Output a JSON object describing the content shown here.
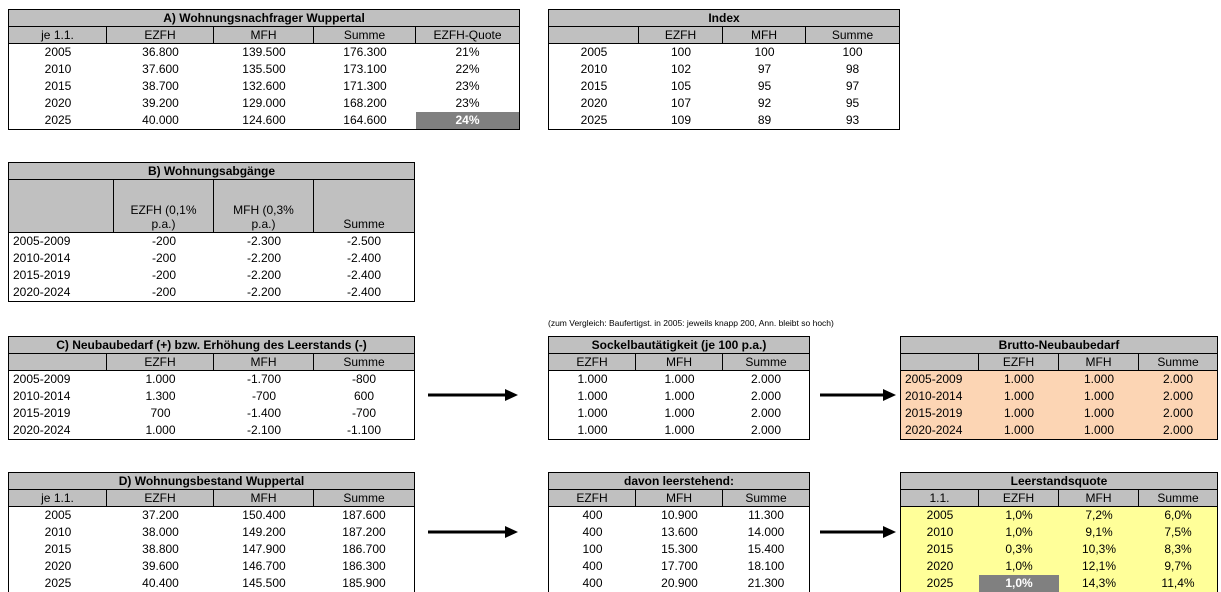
{
  "tables": [
    {
      "title": "A) Wohnungsnachfrager  Wuppertal",
      "header": [
        "je 1.1.",
        "EZFH",
        "MFH",
        "Summe",
        "EZFH-Quote"
      ],
      "rows": [
        [
          "2005",
          "36.800",
          "139.500",
          "176.300",
          "21%"
        ],
        [
          "2010",
          "37.600",
          "135.500",
          "173.100",
          "22%"
        ],
        [
          "2015",
          "38.700",
          "132.600",
          "171.300",
          "23%"
        ],
        [
          "2020",
          "39.200",
          "129.000",
          "168.200",
          "23%"
        ],
        [
          "2025",
          "40.000",
          "124.600",
          "164.600",
          "24%"
        ]
      ]
    },
    {
      "title": "Index",
      "header": [
        "EZFH",
        "MFH",
        "Summe"
      ],
      "rows": [
        [
          "2005",
          "100",
          "100",
          "100"
        ],
        [
          "2010",
          "102",
          "97",
          "98"
        ],
        [
          "2015",
          "105",
          "95",
          "97"
        ],
        [
          "2020",
          "107",
          "92",
          "95"
        ],
        [
          "2025",
          "109",
          "89",
          "93"
        ]
      ]
    },
    {
      "title": "B) Wohnungsabgänge",
      "header": [
        "EZFH (0,1% p.a.)",
        "MFH   (0,3% p.a.)",
        "Summe"
      ],
      "rows": [
        [
          "2005-2009",
          "-200",
          "-2.300",
          "-2.500"
        ],
        [
          "2010-2014",
          "-200",
          "-2.200",
          "-2.400"
        ],
        [
          "2015-2019",
          "-200",
          "-2.200",
          "-2.400"
        ],
        [
          "2020-2024",
          "-200",
          "-2.200",
          "-2.400"
        ]
      ]
    },
    {
      "title": "C) Neubaubedarf (+) bzw. Erhöhung des Leerstands (-)",
      "header": [
        "EZFH",
        "MFH",
        "Summe"
      ],
      "rows": [
        [
          "2005-2009",
          "1.000",
          "-1.700",
          "-800"
        ],
        [
          "2010-2014",
          "1.300",
          "-700",
          "600"
        ],
        [
          "2015-2019",
          "700",
          "-1.400",
          "-700"
        ],
        [
          "2020-2024",
          "1.000",
          "-2.100",
          "-1.100"
        ]
      ]
    },
    {
      "title": "Sockelbautätigkeit (je 100 p.a.)",
      "header": [
        "EZFH",
        "MFH",
        "Summe"
      ],
      "rows": [
        [
          "1.000",
          "1.000",
          "2.000"
        ],
        [
          "1.000",
          "1.000",
          "2.000"
        ],
        [
          "1.000",
          "1.000",
          "2.000"
        ],
        [
          "1.000",
          "1.000",
          "2.000"
        ]
      ]
    },
    {
      "title": "Brutto-Neubaubedarf",
      "header": [
        "EZFH",
        "MFH",
        "Summe"
      ],
      "rows": [
        [
          "2005-2009",
          "1.000",
          "1.000",
          "2.000"
        ],
        [
          "2010-2014",
          "1.000",
          "1.000",
          "2.000"
        ],
        [
          "2015-2019",
          "1.000",
          "1.000",
          "2.000"
        ],
        [
          "2020-2024",
          "1.000",
          "1.000",
          "2.000"
        ]
      ]
    },
    {
      "title": "D) Wohnungsbestand Wuppertal",
      "header": [
        "je 1.1.",
        "EZFH",
        "MFH",
        "Summe"
      ],
      "rows": [
        [
          "2005",
          "37.200",
          "150.400",
          "187.600"
        ],
        [
          "2010",
          "38.000",
          "149.200",
          "187.200"
        ],
        [
          "2015",
          "38.800",
          "147.900",
          "186.700"
        ],
        [
          "2020",
          "39.600",
          "146.700",
          "186.300"
        ],
        [
          "2025",
          "40.400",
          "145.500",
          "185.900"
        ]
      ]
    },
    {
      "title": "davon leerstehend:",
      "header": [
        "EZFH",
        "MFH",
        "Summe"
      ],
      "rows": [
        [
          "400",
          "10.900",
          "11.300"
        ],
        [
          "400",
          "13.600",
          "14.000"
        ],
        [
          "100",
          "15.300",
          "15.400"
        ],
        [
          "400",
          "17.700",
          "18.100"
        ],
        [
          "400",
          "20.900",
          "21.300"
        ]
      ]
    },
    {
      "title": "Leerstandsquote",
      "header": [
        "1.1.",
        "EZFH",
        "MFH",
        "Summe"
      ],
      "rows": [
        [
          "2005",
          "1,0%",
          "7,2%",
          "6,0%"
        ],
        [
          "2010",
          "1,0%",
          "9,1%",
          "7,5%"
        ],
        [
          "2015",
          "0,3%",
          "10,3%",
          "8,3%"
        ],
        [
          "2020",
          "1,0%",
          "12,1%",
          "9,7%"
        ],
        [
          "2025",
          "1,0%",
          "14,3%",
          "11,4%"
        ]
      ]
    }
  ],
  "note": "(zum Vergleich: Baufertigst. in 2005: jeweils knapp 200, Ann. bleibt so hoch)"
}
